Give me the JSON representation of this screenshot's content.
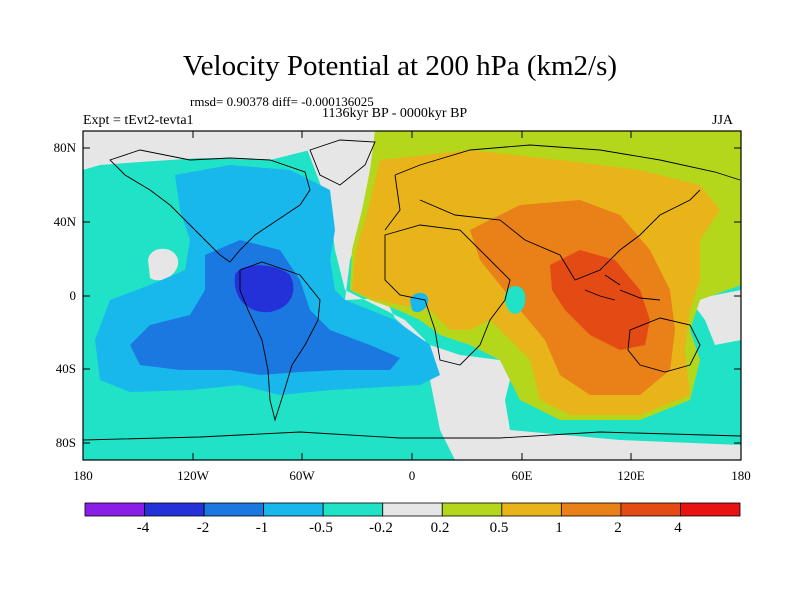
{
  "title": "Velocity Potential at 200 hPa (km2/s)",
  "stats_line": "rmsd= 0.90378 diff= -0.000136025",
  "period": "1136kyr BP - 0000kyr BP",
  "experiment": "Expt = tEvt2-tevta1",
  "season": "JJA",
  "map": {
    "projection": "cylindrical equidistant",
    "lat_range": [
      -90,
      90
    ],
    "lon_range": [
      -180,
      180
    ],
    "lat_tick_labels": [
      "80N",
      "40N",
      "0",
      "40S",
      "80S"
    ],
    "lon_tick_labels": [
      "180",
      "120W",
      "60W",
      "0",
      "60E",
      "120E",
      "180"
    ]
  },
  "colorbar": {
    "labels": [
      "-4",
      "-2",
      "-1",
      "-0.5",
      "-0.2",
      "0.2",
      "0.5",
      "1",
      "2",
      "4"
    ],
    "colors": [
      "#8a1de8",
      "#2431d8",
      "#1a78e0",
      "#18b8ec",
      "#1fe2c6",
      "#e6e6e6",
      "#b4d71c",
      "#e8b41a",
      "#e98018",
      "#e34a14",
      "#e81212"
    ]
  }
}
